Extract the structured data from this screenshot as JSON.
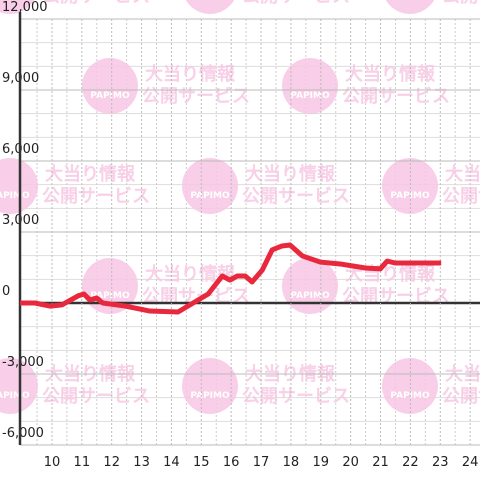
{
  "chart_data": {
    "type": "line",
    "watermark": {
      "line1": "大当り情報",
      "line2": "公開サービス",
      "logo": "PAPIMO"
    },
    "x": [
      8.93,
      9.43,
      9.93,
      10.33,
      10.87,
      11.07,
      11.27,
      11.5,
      11.7,
      12.45,
      13.28,
      14.22,
      14.62,
      15.23,
      15.7,
      15.96,
      16.2,
      16.47,
      16.7,
      17.04,
      17.37,
      17.7,
      17.97,
      18.38,
      18.98,
      19.65,
      20.49,
      20.99,
      21.22,
      21.49,
      23.03
    ],
    "series": [
      {
        "color": "#e8283c",
        "values": [
          0,
          0,
          -130,
          -80,
          300,
          380,
          130,
          210,
          0,
          -130,
          -340,
          -380,
          -80,
          380,
          1140,
          970,
          1140,
          1140,
          890,
          1390,
          2240,
          2410,
          2450,
          1990,
          1730,
          1650,
          1480,
          1440,
          1770,
          1690,
          1690
        ]
      }
    ],
    "xlim": [
      8.93,
      24.33
    ],
    "xticks": [
      10,
      11,
      12,
      13,
      14,
      15,
      16,
      17,
      18,
      19,
      20,
      21,
      22,
      23,
      24
    ],
    "ylim": [
      -6000,
      12000
    ],
    "yticks": [
      {
        "value": -6000,
        "label": "-6,000"
      },
      {
        "value": -3000,
        "label": "-3,000"
      },
      0,
      {
        "value": 3000,
        "label": "3,000"
      },
      {
        "value": 6000,
        "label": "6,000"
      },
      {
        "value": 9000,
        "label": "9,000"
      },
      {
        "value": 12000,
        "label": "12,000"
      }
    ],
    "grid": true
  }
}
